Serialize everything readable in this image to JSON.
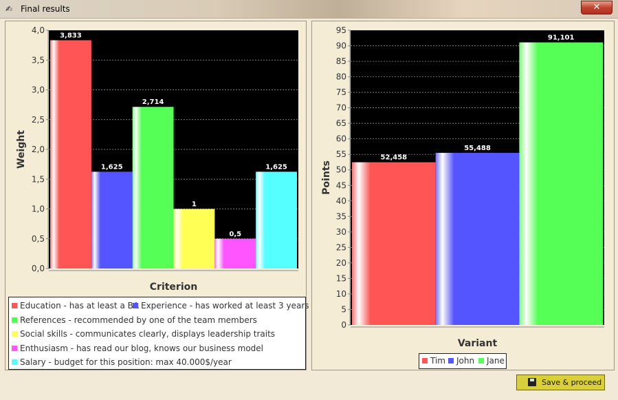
{
  "window": {
    "title": "Final results",
    "close_label": "✕"
  },
  "button": {
    "save_label": "Save & proceed"
  },
  "chart_data": [
    {
      "type": "bar",
      "xlabel": "Criterion",
      "ylabel": "Weight",
      "ylim": [
        0,
        4
      ],
      "yticks": [
        "0,0",
        "0,5",
        "1,0",
        "1,5",
        "2,0",
        "2,5",
        "3,0",
        "3,5",
        "4,0"
      ],
      "grid": true,
      "legend_position": "bottom",
      "series": [
        {
          "name": "Education - has at least a BA",
          "value": 3.833,
          "label": "3,833",
          "color": "#ff5555"
        },
        {
          "name": "Experience - has worked at least 3 years",
          "value": 1.625,
          "label": "1,625",
          "color": "#5555ff"
        },
        {
          "name": "References - recommended by one of the team members",
          "value": 2.714,
          "label": "2,714",
          "color": "#55ff55"
        },
        {
          "name": "Social skills - communicates clearly, displays leadership traits",
          "value": 1,
          "label": "1",
          "color": "#ffff55"
        },
        {
          "name": "Enthusiasm - has read our blog, knows our business model",
          "value": 0.5,
          "label": "0,5",
          "color": "#ff55ff"
        },
        {
          "name": "Salary - budget for this position: max 40.000$/year",
          "value": 1.625,
          "label": "1,625",
          "color": "#55ffff"
        }
      ]
    },
    {
      "type": "bar",
      "xlabel": "Variant",
      "ylabel": "Points",
      "ylim": [
        0,
        95
      ],
      "yticks": [
        "0",
        "5",
        "10",
        "15",
        "20",
        "25",
        "30",
        "35",
        "40",
        "45",
        "50",
        "55",
        "60",
        "65",
        "70",
        "75",
        "80",
        "85",
        "90",
        "95"
      ],
      "grid": true,
      "legend_position": "bottom",
      "series": [
        {
          "name": "Tim",
          "value": 52.458,
          "label": "52,458",
          "color": "#ff5555"
        },
        {
          "name": "John",
          "value": 55.488,
          "label": "55,488",
          "color": "#5555ff"
        },
        {
          "name": "Jane",
          "value": 91.101,
          "label": "91,101",
          "color": "#55ff55"
        }
      ]
    }
  ]
}
